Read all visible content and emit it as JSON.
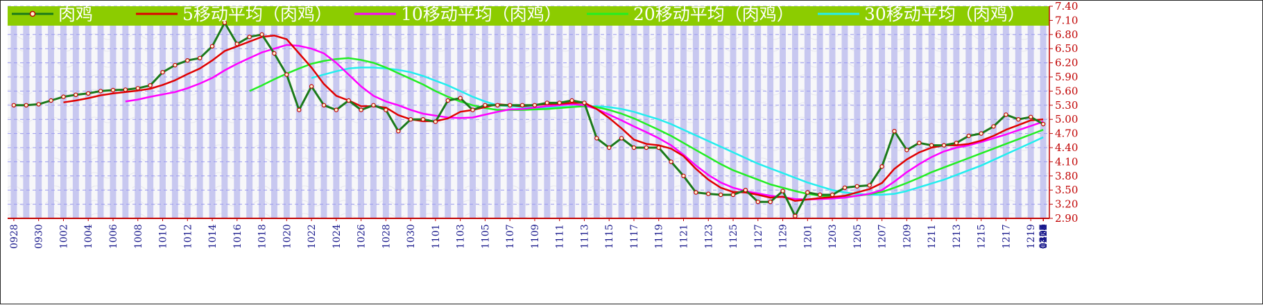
{
  "chart_data": {
    "type": "line",
    "legend_position": "top",
    "grid": true,
    "ylim": [
      2.9,
      7.4
    ],
    "yticks": [
      "7.40",
      "7.10",
      "6.80",
      "6.50",
      "6.20",
      "5.90",
      "5.60",
      "5.30",
      "5.00",
      "4.70",
      "4.40",
      "4.10",
      "3.80",
      "3.50",
      "3.20",
      "2.90"
    ],
    "x_labels": [
      "0928",
      "0930",
      "1002",
      "1004",
      "1006",
      "1008",
      "1010",
      "1012",
      "1014",
      "1016",
      "1018",
      "1020",
      "1022",
      "1024",
      "1026",
      "1028",
      "1030",
      "1101",
      "1103",
      "1105",
      "1107",
      "1109",
      "1111",
      "1113",
      "1115",
      "1117",
      "1119",
      "1121",
      "1123",
      "1125",
      "1127",
      "1129",
      "1201",
      "1203",
      "1205",
      "1207",
      "1209",
      "1211",
      "1213",
      "1215",
      "1217",
      "1219",
      "1221",
      "1223",
      "1225",
      "1227",
      "1229",
      "1231",
      "0102",
      "0104",
      "0106",
      "0108",
      "0110",
      "0112",
      "0114",
      "0116",
      "0118",
      "0120",
      "0223",
      "0225",
      "0227",
      "0229",
      "0302",
      "0304",
      "0306",
      "0308",
      "0310",
      "0312",
      "0314",
      "0316",
      "0318",
      "0320",
      "0322",
      "0324",
      "0326",
      "0328",
      "0330",
      "0401",
      "0403",
      "0405",
      "0407",
      "0409",
      "0411",
      "0413"
    ],
    "series": [
      {
        "name": "肉鸡",
        "color": "#1a7a1a",
        "marker_color": "#c00000",
        "values": [
          5.3,
          5.3,
          5.32,
          5.4,
          5.48,
          5.52,
          5.55,
          5.6,
          5.62,
          5.63,
          5.66,
          5.72,
          6.0,
          6.15,
          6.25,
          6.3,
          6.55,
          7.05,
          6.6,
          6.75,
          6.8,
          6.4,
          5.95,
          5.2,
          5.7,
          5.3,
          5.2,
          5.4,
          5.2,
          5.3,
          5.2,
          4.75,
          5.0,
          5.0,
          4.95,
          5.4,
          5.45,
          5.2,
          5.3,
          5.3,
          5.3,
          5.3,
          5.3,
          5.35,
          5.35,
          5.4,
          5.35,
          4.6,
          4.4,
          4.6,
          4.4,
          4.4,
          4.4,
          4.1,
          3.8,
          3.45,
          3.42,
          3.4,
          3.4,
          3.5,
          3.25,
          3.25,
          3.48,
          2.95,
          3.45,
          3.4,
          3.4,
          3.55,
          3.58,
          3.6,
          4.0,
          4.75,
          4.35,
          4.5,
          4.45,
          4.45,
          4.5,
          4.65,
          4.7,
          4.85,
          5.1,
          5.0,
          5.05,
          4.9
        ]
      },
      {
        "name": "5移动平均（肉鸡）",
        "color": "#e00000",
        "values": [
          null,
          null,
          null,
          null,
          5.36,
          5.4,
          5.45,
          5.51,
          5.55,
          5.58,
          5.61,
          5.65,
          5.73,
          5.83,
          5.96,
          6.08,
          6.25,
          6.45,
          6.55,
          6.65,
          6.75,
          6.78,
          6.7,
          6.4,
          6.1,
          5.75,
          5.5,
          5.4,
          5.28,
          5.28,
          5.25,
          5.09,
          5.0,
          4.96,
          4.96,
          5.02,
          5.16,
          5.2,
          5.26,
          5.32,
          5.3,
          5.28,
          5.3,
          5.32,
          5.33,
          5.35,
          5.35,
          5.22,
          5.03,
          4.81,
          4.57,
          4.48,
          4.45,
          4.38,
          4.22,
          3.95,
          3.72,
          3.55,
          3.46,
          3.45,
          3.4,
          3.34,
          3.36,
          3.27,
          3.3,
          3.33,
          3.35,
          3.38,
          3.45,
          3.52,
          3.65,
          3.95,
          4.15,
          4.3,
          4.4,
          4.45,
          4.45,
          4.48,
          4.55,
          4.65,
          4.78,
          4.88,
          4.98,
          5.0
        ]
      },
      {
        "name": "10移动平均（肉鸡）",
        "color": "#ff00ff",
        "values": [
          null,
          null,
          null,
          null,
          null,
          null,
          null,
          null,
          null,
          5.38,
          5.42,
          5.48,
          5.53,
          5.58,
          5.66,
          5.76,
          5.88,
          6.04,
          6.18,
          6.3,
          6.42,
          6.5,
          6.58,
          6.56,
          6.5,
          6.4,
          6.2,
          5.95,
          5.7,
          5.5,
          5.38,
          5.3,
          5.2,
          5.12,
          5.08,
          5.04,
          5.03,
          5.04,
          5.1,
          5.16,
          5.21,
          5.22,
          5.25,
          5.28,
          5.3,
          5.32,
          5.3,
          5.22,
          5.1,
          4.98,
          4.85,
          4.73,
          4.6,
          4.45,
          4.25,
          4.02,
          3.82,
          3.66,
          3.55,
          3.48,
          3.43,
          3.38,
          3.35,
          3.31,
          3.3,
          3.31,
          3.32,
          3.34,
          3.38,
          3.42,
          3.5,
          3.68,
          3.88,
          4.05,
          4.2,
          4.32,
          4.4,
          4.45,
          4.52,
          4.6,
          4.68,
          4.77,
          4.86,
          4.95
        ]
      },
      {
        "name": "20移动平均（肉鸡）",
        "color": "#22ee22",
        "values": [
          null,
          null,
          null,
          null,
          null,
          null,
          null,
          null,
          null,
          null,
          null,
          null,
          null,
          null,
          null,
          null,
          null,
          null,
          null,
          5.6,
          5.72,
          5.85,
          5.97,
          6.08,
          6.18,
          6.24,
          6.28,
          6.3,
          6.26,
          6.2,
          6.1,
          5.98,
          5.86,
          5.74,
          5.6,
          5.48,
          5.38,
          5.3,
          5.24,
          5.2,
          5.2,
          5.2,
          5.21,
          5.22,
          5.24,
          5.26,
          5.28,
          5.26,
          5.2,
          5.12,
          5.02,
          4.9,
          4.78,
          4.65,
          4.5,
          4.35,
          4.2,
          4.05,
          3.92,
          3.82,
          3.72,
          3.62,
          3.55,
          3.48,
          3.42,
          3.38,
          3.36,
          3.36,
          3.38,
          3.41,
          3.46,
          3.55,
          3.65,
          3.76,
          3.88,
          3.98,
          4.08,
          4.18,
          4.28,
          4.38,
          4.48,
          4.58,
          4.68,
          4.78
        ]
      },
      {
        "name": "30移动平均（肉鸡）",
        "color": "#22eeee",
        "values": [
          null,
          null,
          null,
          null,
          null,
          null,
          null,
          null,
          null,
          null,
          null,
          null,
          null,
          null,
          null,
          null,
          null,
          null,
          null,
          null,
          null,
          null,
          null,
          null,
          5.88,
          5.95,
          6.02,
          6.08,
          6.1,
          6.1,
          6.08,
          6.05,
          6.0,
          5.92,
          5.82,
          5.72,
          5.6,
          5.48,
          5.38,
          5.3,
          5.28,
          5.26,
          5.25,
          5.25,
          5.26,
          5.27,
          5.28,
          5.28,
          5.26,
          5.22,
          5.16,
          5.08,
          5.0,
          4.9,
          4.78,
          4.66,
          4.54,
          4.42,
          4.3,
          4.18,
          4.06,
          3.96,
          3.86,
          3.76,
          3.66,
          3.58,
          3.5,
          3.45,
          3.42,
          3.4,
          3.4,
          3.42,
          3.48,
          3.56,
          3.64,
          3.72,
          3.82,
          3.92,
          4.02,
          4.14,
          4.26,
          4.38,
          4.5,
          4.62
        ]
      }
    ]
  }
}
